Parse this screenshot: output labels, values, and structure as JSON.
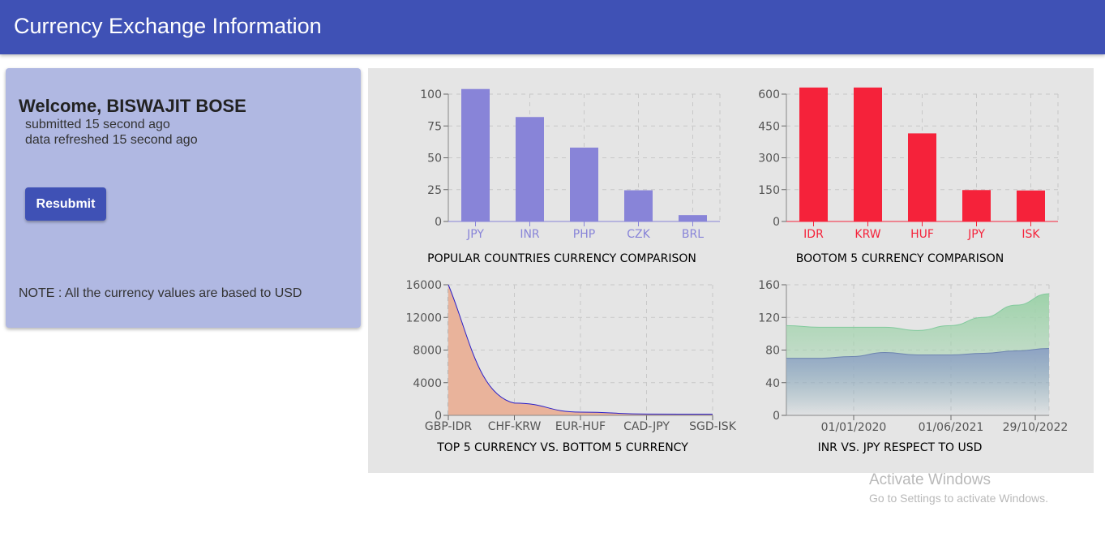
{
  "header": {
    "title": "Currency Exchange Information"
  },
  "card": {
    "welcome_prefix": "Welcome, ",
    "user_name": "BISWAJIT BOSE",
    "submitted": "submitted 15 second ago",
    "refreshed": "data refreshed 15 second ago",
    "resubmit_label": "Resubmit",
    "note": "NOTE : All the currency values are based to USD"
  },
  "watermark": {
    "line1": "Activate Windows",
    "line2": "Go to Settings to activate Windows."
  },
  "colors": {
    "appbar": "#3f51b5",
    "card": "#b0b8e2",
    "bar_popular": "#8884d8",
    "bar_bottom": "#f5223a",
    "area_orange": "#e9b39b",
    "area_green": "#9ed2aa",
    "area_blue": "#8ea3c4"
  },
  "chart_data": [
    {
      "type": "bar",
      "title": "POPULAR COUNTRIES CURRENCY COMPARISON",
      "categories": [
        "JPY",
        "INR",
        "PHP",
        "CZK",
        "BRL"
      ],
      "values": [
        104,
        82,
        58,
        24.5,
        5
      ],
      "ylim": [
        0,
        100
      ],
      "yticks": [
        "0",
        "25",
        "50",
        "75",
        "100"
      ],
      "grid": true,
      "color": "#8884d8"
    },
    {
      "type": "bar",
      "title": "BOOTOM 5 CURRENCY COMPARISON",
      "categories": [
        "IDR",
        "KRW",
        "HUF",
        "JPY",
        "ISK"
      ],
      "values": [
        631,
        631,
        415,
        148,
        146
      ],
      "ylim": [
        0,
        600
      ],
      "yticks": [
        "0",
        "150",
        "300",
        "450",
        "600"
      ],
      "grid": true,
      "color": "#f5223a"
    },
    {
      "type": "area",
      "title": "TOP 5 CURRENCY VS. BOTTOM 5 CURRENCY",
      "categories": [
        "GBP-IDR",
        "CHF-KRW",
        "EUR-HUF",
        "CAD-JPY",
        "SGD-ISK"
      ],
      "values": [
        16000,
        1500,
        400,
        160,
        150
      ],
      "ylim": [
        0,
        16000
      ],
      "yticks": [
        "0",
        "4000",
        "8000",
        "12000",
        "16000"
      ],
      "grid": true,
      "color": "#e9b39b"
    },
    {
      "type": "area",
      "title": "INR VS. JPY RESPECT TO USD",
      "x_ticks": [
        "01/01/2020",
        "01/06/2021",
        "29/10/2022"
      ],
      "series": [
        {
          "values": [
            110,
            108,
            108,
            108,
            104,
            110,
            120,
            135,
            149
          ],
          "color": "#9ed2aa"
        },
        {
          "values": [
            70,
            70,
            72,
            77,
            74,
            74,
            76,
            79,
            82
          ],
          "color": "#8ea3c4"
        }
      ],
      "ylim": [
        0,
        160
      ],
      "yticks": [
        "0",
        "40",
        "80",
        "120",
        "160"
      ],
      "grid": true
    }
  ]
}
